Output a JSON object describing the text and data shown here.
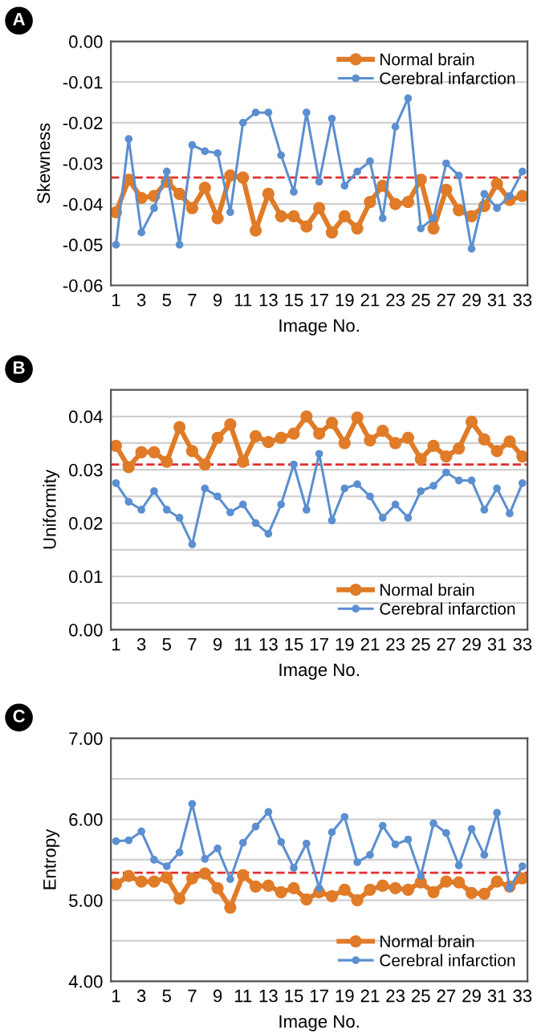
{
  "chart_data": [
    {
      "type": "line",
      "annotations": [
        "A"
      ],
      "xlabel": "Image No.",
      "ylabel": "Skewness",
      "x": [
        1,
        2,
        3,
        4,
        5,
        6,
        7,
        8,
        9,
        10,
        11,
        12,
        13,
        14,
        15,
        16,
        17,
        18,
        19,
        20,
        21,
        22,
        23,
        24,
        25,
        26,
        27,
        28,
        29,
        30,
        31,
        32,
        33
      ],
      "xlim": [
        0.6,
        33.4
      ],
      "xticks": [
        1,
        3,
        5,
        7,
        9,
        11,
        13,
        15,
        17,
        19,
        21,
        23,
        25,
        27,
        29,
        31,
        33
      ],
      "ylim": [
        -0.06,
        0
      ],
      "yticks": [
        {
          "value": -0.06,
          "label": "-0.06"
        },
        {
          "value": -0.05,
          "label": "-0.05"
        },
        {
          "value": -0.04,
          "label": "-0.04"
        },
        {
          "value": -0.03,
          "label": "-0.03"
        },
        {
          "value": -0.02,
          "label": "-0.02"
        },
        {
          "value": -0.01,
          "label": "-0.01"
        },
        {
          "value": 0,
          "label": "0.00"
        }
      ],
      "grid": "y",
      "legend": "top right",
      "marker": "circle",
      "line_style": "solid",
      "series": [
        {
          "name": "Normal brain",
          "color": "#e07b28",
          "values": [
            -0.042,
            -0.034,
            -0.0385,
            -0.038,
            -0.0345,
            -0.0375,
            -0.041,
            -0.036,
            -0.0435,
            -0.033,
            -0.0335,
            -0.0465,
            -0.0375,
            -0.043,
            -0.043,
            -0.0455,
            -0.041,
            -0.047,
            -0.043,
            -0.046,
            -0.0395,
            -0.0355,
            -0.04,
            -0.0395,
            -0.034,
            -0.046,
            -0.0365,
            -0.0415,
            -0.043,
            -0.0405,
            -0.035,
            -0.039,
            -0.038
          ]
        },
        {
          "name": "Cerebral infarction",
          "color": "#5b8fd0",
          "values": [
            -0.05,
            -0.024,
            -0.047,
            -0.041,
            -0.032,
            -0.05,
            -0.0255,
            -0.027,
            -0.0275,
            -0.042,
            -0.02,
            -0.0175,
            -0.0175,
            -0.028,
            -0.037,
            -0.0175,
            -0.0345,
            -0.019,
            -0.0355,
            -0.032,
            -0.0295,
            -0.0435,
            -0.021,
            -0.014,
            -0.046,
            -0.0435,
            -0.03,
            -0.033,
            -0.051,
            -0.0375,
            -0.041,
            -0.038,
            -0.032
          ]
        }
      ],
      "ref_lines": [
        {
          "axis": "y",
          "value": -0.0335,
          "label": null,
          "color": "#e03030",
          "line_style": "dashed"
        }
      ]
    },
    {
      "type": "line",
      "annotations": [
        "B"
      ],
      "xlabel": "Image No.",
      "ylabel": "Uniformity",
      "x": [
        1,
        2,
        3,
        4,
        5,
        6,
        7,
        8,
        9,
        10,
        11,
        12,
        13,
        14,
        15,
        16,
        17,
        18,
        19,
        20,
        21,
        22,
        23,
        24,
        25,
        26,
        27,
        28,
        29,
        30,
        31,
        32,
        33
      ],
      "xlim": [
        0.6,
        33.4
      ],
      "xticks": [
        1,
        3,
        5,
        7,
        9,
        11,
        13,
        15,
        17,
        19,
        21,
        23,
        25,
        27,
        29,
        31,
        33
      ],
      "ylim": [
        0,
        0.045
      ],
      "yticks": [
        {
          "value": 0,
          "label": "0.00"
        },
        {
          "value": 0.005,
          "label": null
        },
        {
          "value": 0.01,
          "label": "0.01"
        },
        {
          "value": 0.015,
          "label": null
        },
        {
          "value": 0.02,
          "label": "0.02"
        },
        {
          "value": 0.025,
          "label": null
        },
        {
          "value": 0.03,
          "label": "0.03"
        },
        {
          "value": 0.035,
          "label": null
        },
        {
          "value": 0.04,
          "label": "0.04"
        }
      ],
      "grid": "y",
      "legend": "bottom right",
      "marker": "circle",
      "line_style": "solid",
      "series": [
        {
          "name": "Normal brain",
          "color": "#e07b28",
          "values": [
            0.0345,
            0.0305,
            0.0333,
            0.0333,
            0.0315,
            0.038,
            0.0335,
            0.031,
            0.036,
            0.0385,
            0.0315,
            0.0363,
            0.0352,
            0.036,
            0.0368,
            0.04,
            0.0368,
            0.0388,
            0.035,
            0.0398,
            0.0355,
            0.0373,
            0.035,
            0.036,
            0.032,
            0.0345,
            0.0325,
            0.034,
            0.039,
            0.0357,
            0.0335,
            0.0353,
            0.0325
          ]
        },
        {
          "name": "Cerebral infarction",
          "color": "#5b8fd0",
          "values": [
            0.0275,
            0.024,
            0.0225,
            0.026,
            0.0225,
            0.021,
            0.016,
            0.0265,
            0.025,
            0.022,
            0.0235,
            0.02,
            0.018,
            0.0235,
            0.031,
            0.0225,
            0.033,
            0.0205,
            0.0265,
            0.0273,
            0.025,
            0.021,
            0.0235,
            0.021,
            0.026,
            0.027,
            0.0295,
            0.028,
            0.028,
            0.0225,
            0.0265,
            0.0218,
            0.0275
          ]
        }
      ],
      "ref_lines": [
        {
          "axis": "y",
          "value": 0.031,
          "label": null,
          "color": "#e03030",
          "line_style": "dashed"
        }
      ]
    },
    {
      "type": "line",
      "annotations": [
        "C"
      ],
      "xlabel": "Image No.",
      "ylabel": "Entropy",
      "x": [
        1,
        2,
        3,
        4,
        5,
        6,
        7,
        8,
        9,
        10,
        11,
        12,
        13,
        14,
        15,
        16,
        17,
        18,
        19,
        20,
        21,
        22,
        23,
        24,
        25,
        26,
        27,
        28,
        29,
        30,
        31,
        32,
        33
      ],
      "xlim": [
        0.6,
        33.4
      ],
      "xticks": [
        1,
        3,
        5,
        7,
        9,
        11,
        13,
        15,
        17,
        19,
        21,
        23,
        25,
        27,
        29,
        31,
        33
      ],
      "ylim": [
        4,
        7
      ],
      "yticks": [
        {
          "value": 4,
          "label": "4.00"
        },
        {
          "value": 4.5,
          "label": null
        },
        {
          "value": 5,
          "label": "5.00"
        },
        {
          "value": 5.5,
          "label": null
        },
        {
          "value": 6,
          "label": "6.00"
        },
        {
          "value": 6.5,
          "label": null
        },
        {
          "value": 7,
          "label": "7.00"
        }
      ],
      "grid": "y",
      "legend": "bottom right",
      "marker": "circle",
      "line_style": "solid",
      "series": [
        {
          "name": "Normal brain",
          "color": "#e07b28",
          "values": [
            5.2,
            5.3,
            5.23,
            5.23,
            5.28,
            5.02,
            5.27,
            5.33,
            5.15,
            4.91,
            5.31,
            5.17,
            5.18,
            5.1,
            5.15,
            5.01,
            5.1,
            5.05,
            5.13,
            5.0,
            5.13,
            5.18,
            5.15,
            5.13,
            5.22,
            5.1,
            5.23,
            5.22,
            5.09,
            5.08,
            5.23,
            5.17,
            5.27
          ]
        },
        {
          "name": "Cerebral infarction",
          "color": "#5b8fd0",
          "values": [
            5.73,
            5.74,
            5.85,
            5.5,
            5.42,
            5.59,
            6.19,
            5.51,
            5.64,
            5.26,
            5.71,
            5.91,
            6.09,
            5.72,
            5.4,
            5.7,
            5.15,
            5.84,
            6.03,
            5.47,
            5.56,
            5.92,
            5.69,
            5.75,
            5.3,
            5.95,
            5.83,
            5.43,
            5.88,
            5.56,
            6.08,
            5.15,
            5.42
          ]
        }
      ],
      "ref_lines": [
        {
          "axis": "y",
          "value": 5.34,
          "label": null,
          "color": "#e03030",
          "line_style": "dashed"
        }
      ]
    }
  ]
}
